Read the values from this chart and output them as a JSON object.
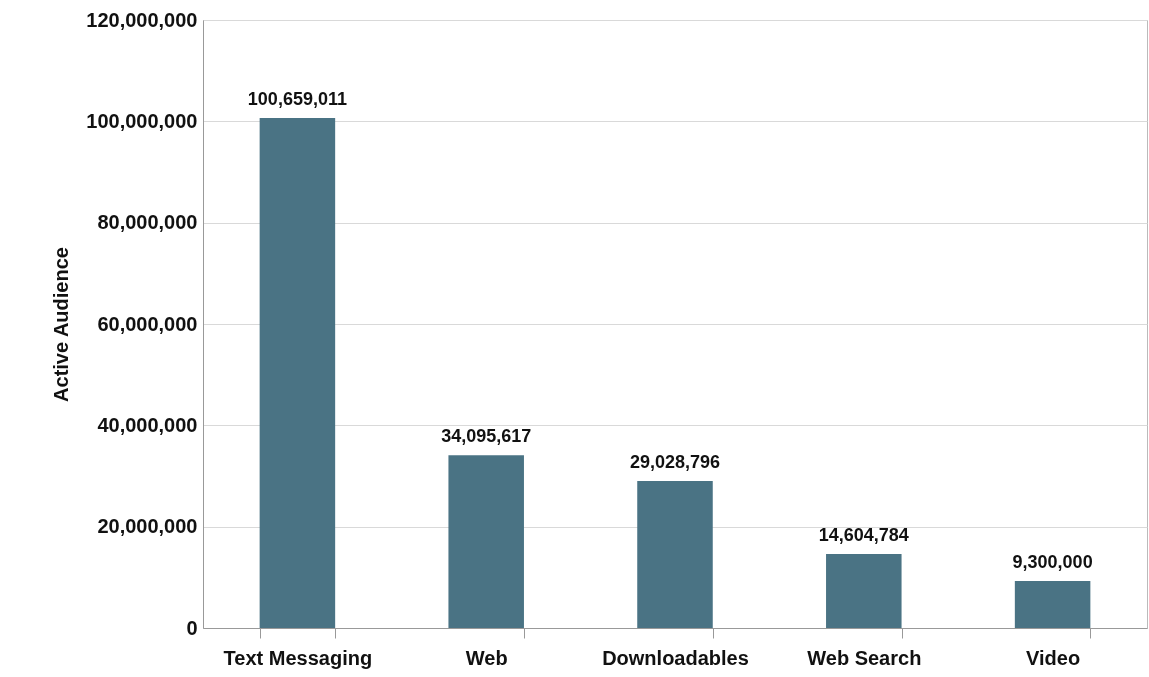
{
  "chart_data": {
    "type": "bar",
    "ylabel": "Active Audience",
    "categories": [
      "Text Messaging",
      "Web",
      "Downloadables",
      "Web Search",
      "Video"
    ],
    "values": [
      100659011,
      34095617,
      29028796,
      14604784,
      9300000
    ],
    "value_labels": [
      "100,659,011",
      "34,095,617",
      "29,028,796",
      "14,604,784",
      "9,300,000"
    ],
    "color": "#4a7384",
    "ylim": [
      0,
      120000000
    ],
    "yticks": [
      0,
      {
        "value": 20000000,
        "label": "20,000,000"
      },
      {
        "value": 40000000,
        "label": "40,000,000"
      },
      {
        "value": 60000000,
        "label": "60,000,000"
      },
      {
        "value": 80000000,
        "label": "80,000,000"
      },
      {
        "value": 100000000,
        "label": "100,000,000"
      },
      {
        "value": 120000000,
        "label": "120,000,000"
      }
    ],
    "grid": "y"
  }
}
